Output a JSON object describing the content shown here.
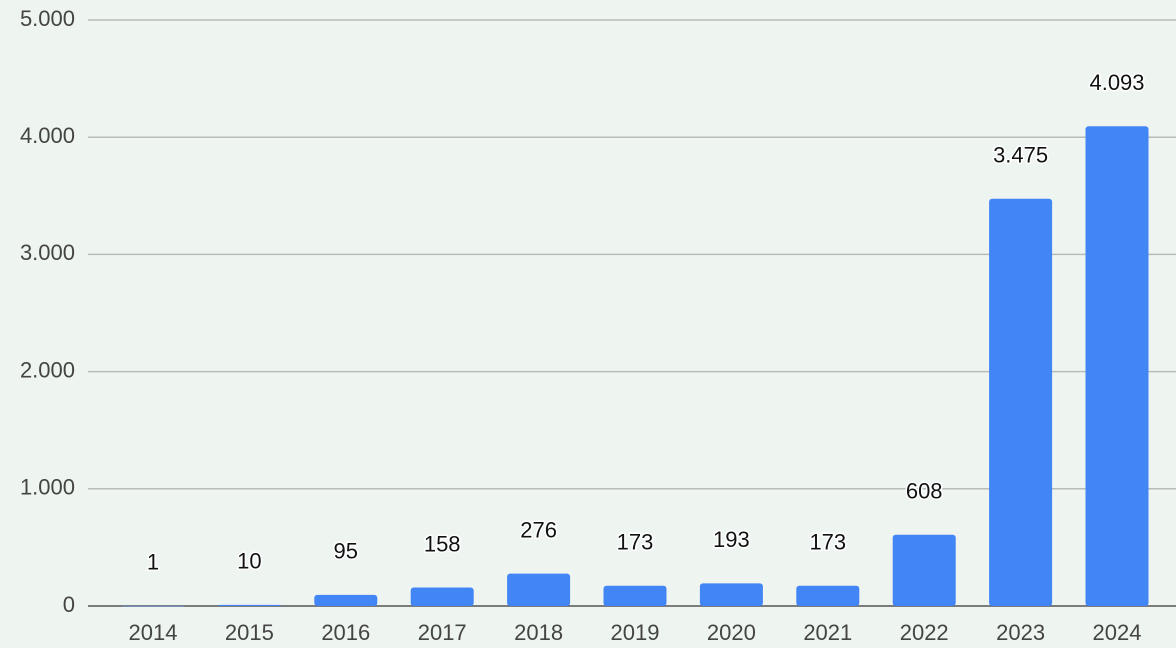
{
  "chart_data": {
    "type": "bar",
    "categories": [
      "2014",
      "2015",
      "2016",
      "2017",
      "2018",
      "2019",
      "2020",
      "2021",
      "2022",
      "2023",
      "2024"
    ],
    "values": [
      1,
      10,
      95,
      158,
      276,
      173,
      193,
      173,
      608,
      3475,
      4093
    ],
    "value_labels": [
      "1",
      "10",
      "95",
      "158",
      "276",
      "173",
      "193",
      "173",
      "608",
      "3.475",
      "4.093"
    ],
    "color": "#4285f4",
    "ylim": [
      0,
      5000
    ],
    "yticks": [
      0,
      {
        "value": 1000,
        "label": "1.000"
      },
      {
        "value": 2000,
        "label": "2.000"
      },
      {
        "value": 3000,
        "label": "3.000"
      },
      {
        "value": 4000,
        "label": "4.000"
      },
      {
        "value": 5000,
        "label": "5.000"
      }
    ],
    "grid": true
  }
}
